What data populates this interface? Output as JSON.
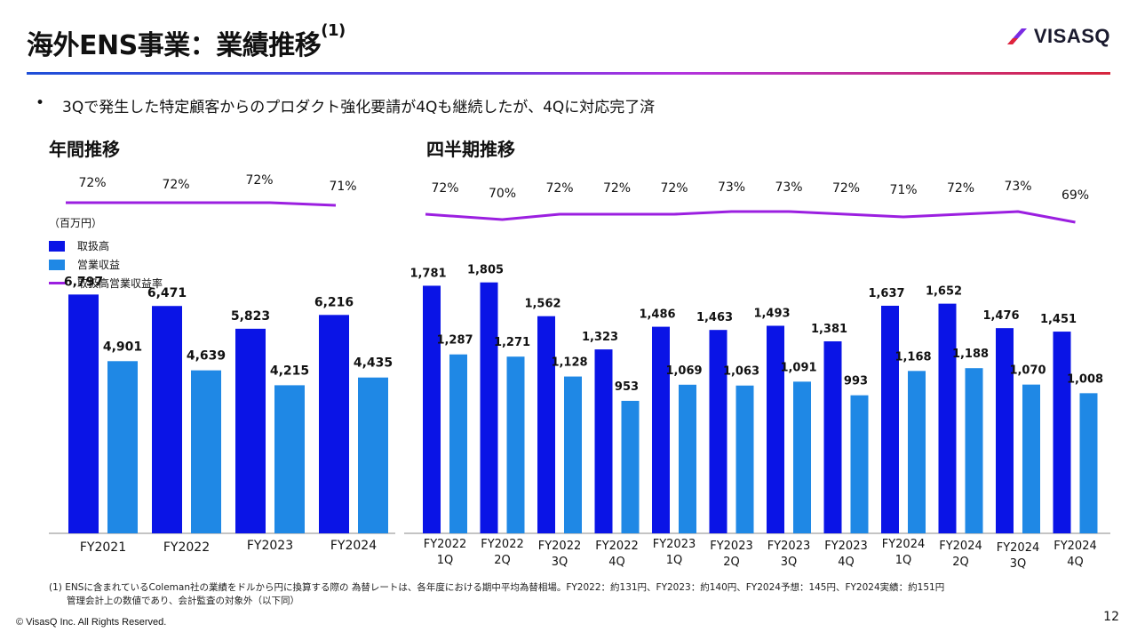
{
  "header": {
    "title": "海外ENS事業：業績推移",
    "title_note": "(1)",
    "logo_text": "VISASQ"
  },
  "bullet": {
    "marker": "•",
    "text": "3Qで発生した特定顧客からのプロダクト強化要請が4Qも継続したが、4Qに対応完了済"
  },
  "sections": {
    "annual_title": "年間推移",
    "quarterly_title": "四半期推移"
  },
  "unit_label": "（百万円）",
  "legend": [
    {
      "label": "取扱高",
      "color": "#0a14e6"
    },
    {
      "label": "営業収益",
      "color": "#1f88e5"
    },
    {
      "label": "取扱高営業収益率",
      "color": "#9b1fe0"
    }
  ],
  "chart_data": [
    {
      "type": "bar",
      "title": "年間推移",
      "categories": [
        "FY2021",
        "FY2022",
        "FY2023",
        "FY2024"
      ],
      "series": [
        {
          "name": "取扱高",
          "values": [
            6797,
            6471,
            5823,
            6216
          ],
          "labels": [
            "6,797",
            "6,471",
            "5,823",
            "6,216"
          ]
        },
        {
          "name": "営業収益",
          "values": [
            4901,
            4639,
            4215,
            4435
          ],
          "labels": [
            "4,901",
            "4,639",
            "4,215",
            "4,435"
          ]
        },
        {
          "name": "取扱高営業収益率",
          "type": "line",
          "values": [
            72,
            72,
            72,
            71
          ],
          "labels": [
            "72%",
            "72%",
            "72%",
            "71%"
          ]
        }
      ],
      "ylim": [
        0,
        8000
      ]
    },
    {
      "type": "bar",
      "title": "四半期推移",
      "categories": [
        [
          "FY2022",
          "1Q"
        ],
        [
          "FY2022",
          "2Q"
        ],
        [
          "FY2022",
          "3Q"
        ],
        [
          "FY2022",
          "4Q"
        ],
        [
          "FY2023",
          "1Q"
        ],
        [
          "FY2023",
          "2Q"
        ],
        [
          "FY2023",
          "3Q"
        ],
        [
          "FY2023",
          "4Q"
        ],
        [
          "FY2024",
          "1Q"
        ],
        [
          "FY2024",
          "2Q"
        ],
        [
          "FY2024",
          "3Q"
        ],
        [
          "FY2024",
          "4Q"
        ]
      ],
      "series": [
        {
          "name": "取扱高",
          "values": [
            1781,
            1805,
            1562,
            1323,
            1486,
            1463,
            1493,
            1381,
            1637,
            1652,
            1476,
            1451
          ],
          "labels": [
            "1,781",
            "1,805",
            "1,562",
            "1,323",
            "1,486",
            "1,463",
            "1,493",
            "1,381",
            "1,637",
            "1,652",
            "1,476",
            "1,451"
          ]
        },
        {
          "name": "営業収益",
          "values": [
            1287,
            1271,
            1128,
            953,
            1069,
            1063,
            1091,
            993,
            1168,
            1188,
            1070,
            1008
          ],
          "labels": [
            "1,287",
            "1,271",
            "1,128",
            "953",
            "1,069",
            "1,063",
            "1,091",
            "993",
            "1,168",
            "1,188",
            "1,070",
            "1,008"
          ]
        },
        {
          "name": "取扱高営業収益率",
          "type": "line",
          "values": [
            72,
            70,
            72,
            72,
            72,
            73,
            73,
            72,
            71,
            72,
            73,
            69
          ],
          "labels": [
            "72%",
            "70%",
            "72%",
            "72%",
            "72%",
            "73%",
            "73%",
            "72%",
            "71%",
            "72%",
            "73%",
            "69%"
          ]
        }
      ],
      "ylim": [
        0,
        2000
      ]
    }
  ],
  "footnote": {
    "line1": "(1) ENSに含まれているColeman社の業績をドルから円に換算する際の 為替レートは、各年度における期中平均為替相場。FY2022：約131円、FY2023：約140円、FY2024予想：145円、FY2024実績：約151円",
    "line2": "管理会計上の数値であり、会計監査の対象外（以下同）"
  },
  "copyright": "© VisasQ Inc. All Rights Reserved.",
  "page_number": "12"
}
